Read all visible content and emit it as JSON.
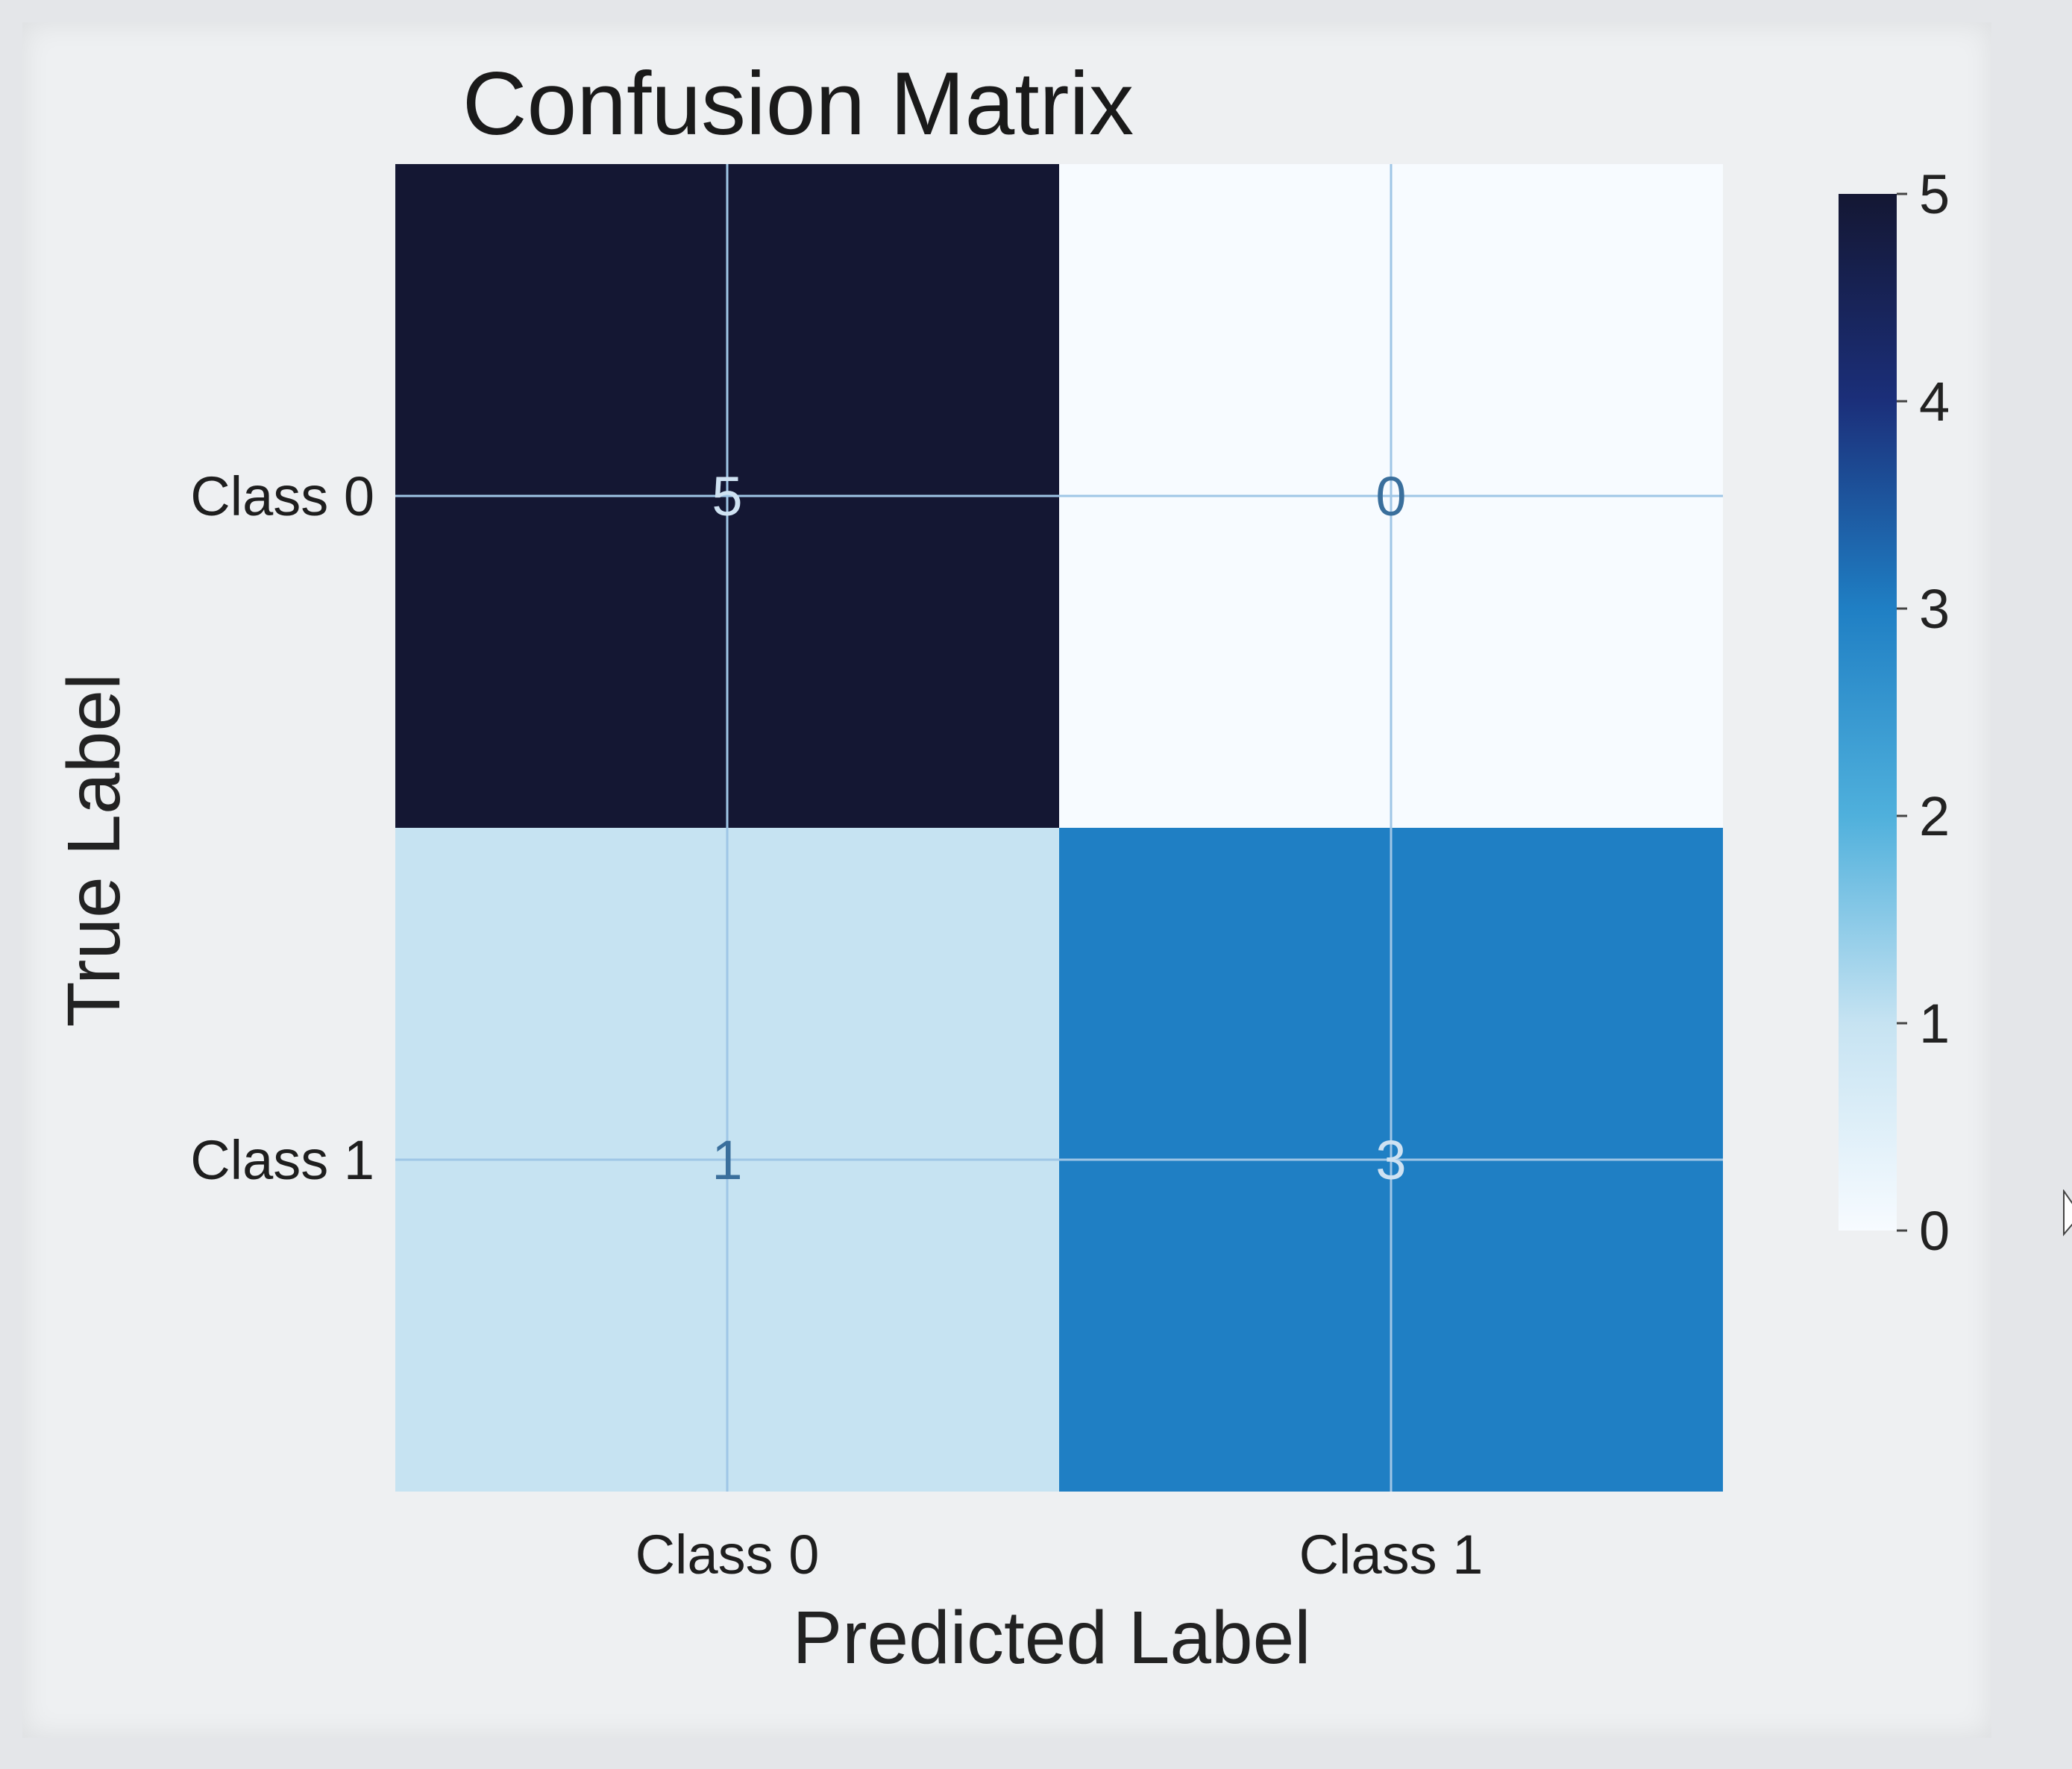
{
  "chart_data": {
    "type": "heatmap",
    "title": "Confusion Matrix",
    "xlabel": "Predicted Label",
    "ylabel": "True Label",
    "x_categories": [
      "Class 0",
      "Class 1"
    ],
    "y_categories": [
      "Class 0",
      "Class 1"
    ],
    "values": [
      [
        5,
        0
      ],
      [
        1,
        3
      ]
    ],
    "colorbar": {
      "min": 0,
      "max": 5,
      "ticks": [
        0,
        1,
        2,
        3,
        4,
        5
      ]
    },
    "colormap": [
      "#f7fbff",
      "#c6e3f2",
      "#4fb0dc",
      "#1f7fc4",
      "#1b2f7a",
      "#141733"
    ],
    "grid": true
  }
}
